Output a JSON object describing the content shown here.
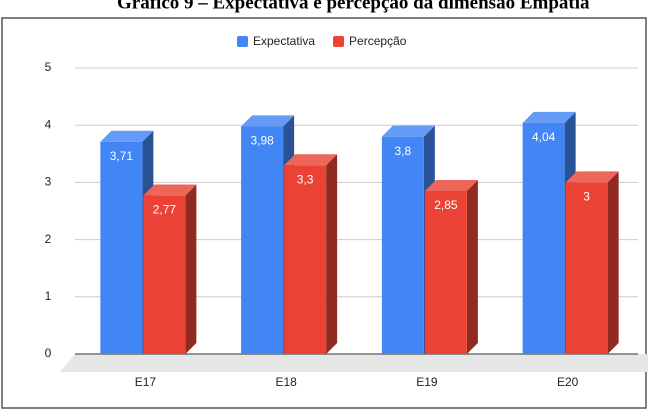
{
  "chart_data": {
    "type": "bar",
    "title": "Gráfico 9 – Expectativa e percepção da dimensão Empatia",
    "categories": [
      "E17",
      "E18",
      "E19",
      "E20"
    ],
    "series": [
      {
        "name": "Expectativa",
        "color": "#4285f4",
        "values": [
          3.71,
          3.98,
          3.8,
          4.04
        ],
        "value_labels": [
          "3,71",
          "3,98",
          "3,8",
          "4,04"
        ]
      },
      {
        "name": "Percepção",
        "color": "#ea4335",
        "values": [
          2.77,
          3.3,
          2.85,
          3
        ],
        "value_labels": [
          "2,77",
          "3,3",
          "2,85",
          "3"
        ]
      }
    ],
    "ylim": [
      0,
      5
    ],
    "yticks": [
      0,
      1,
      2,
      3,
      4,
      5
    ],
    "grid": true,
    "legend": "top"
  }
}
